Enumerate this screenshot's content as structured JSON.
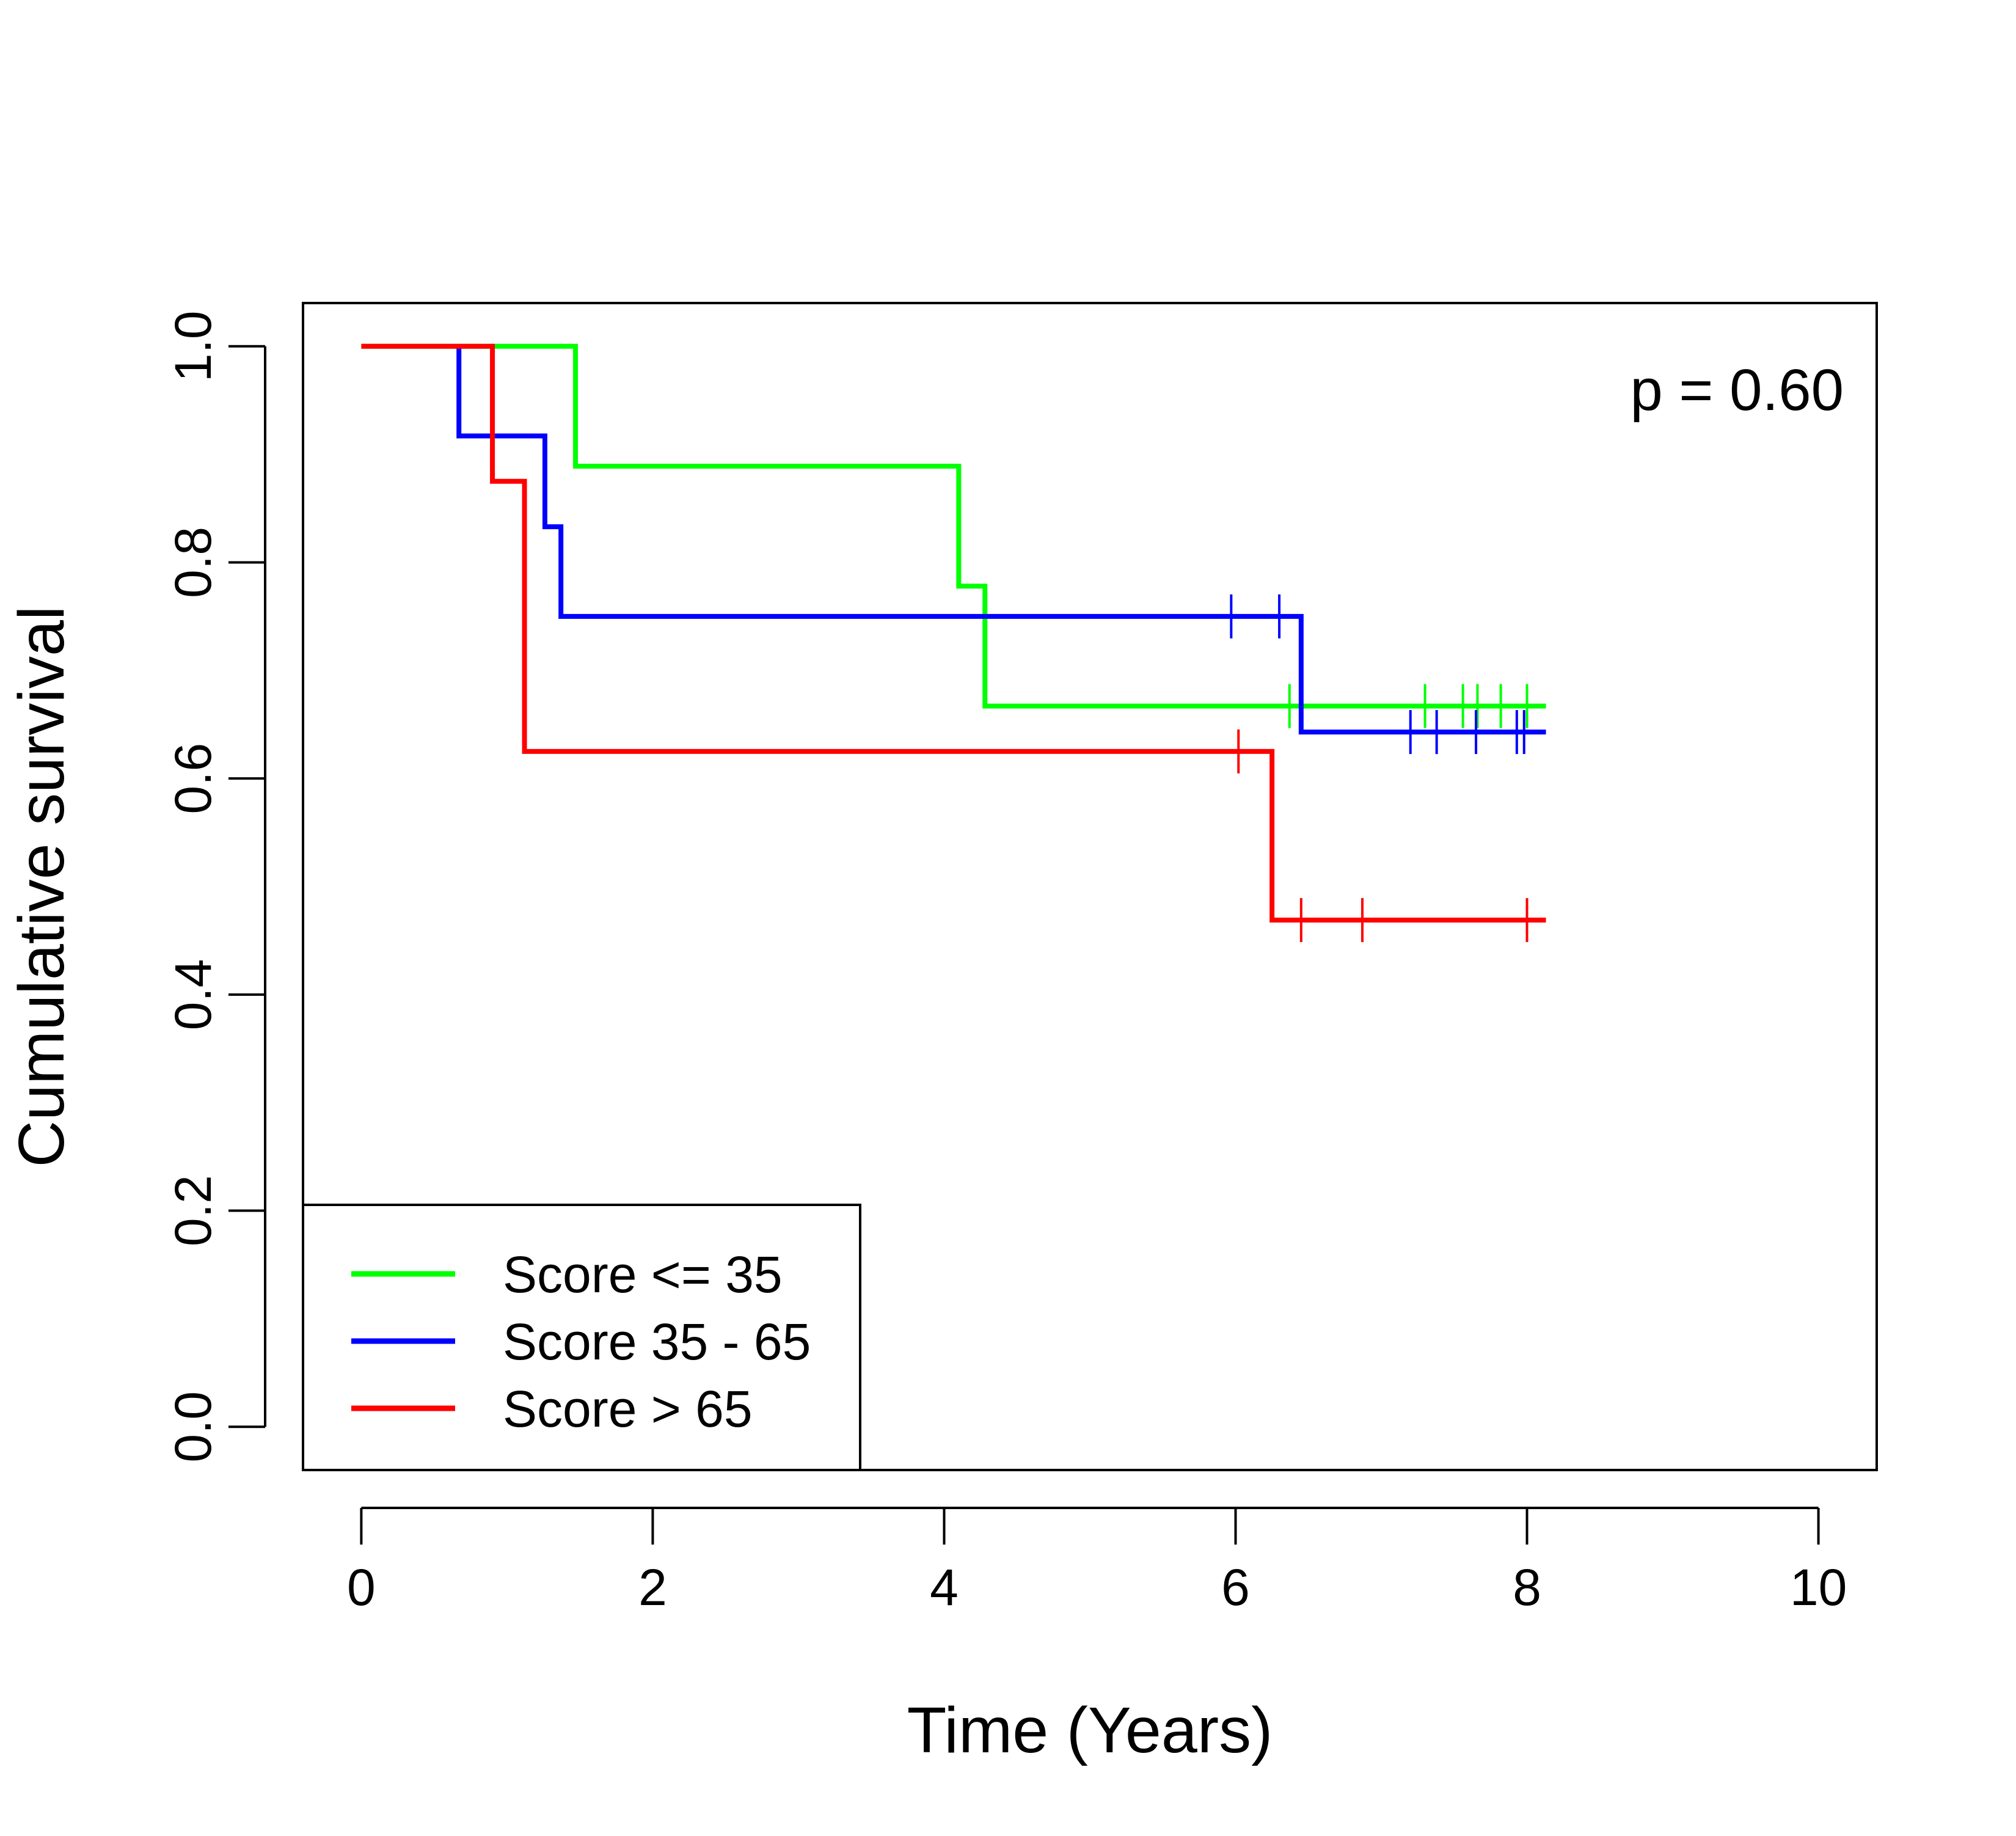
{
  "chart_data": {
    "type": "line",
    "subtype": "kaplan-meier step",
    "title": "",
    "xlabel": "Time (Years)",
    "ylabel": "Cumulative survival",
    "xlim": [
      -0.4,
      10.4
    ],
    "ylim": [
      -0.04,
      1.04
    ],
    "xticks": [
      0,
      2,
      4,
      6,
      8,
      10
    ],
    "xtick_labels": [
      "0",
      "2",
      "4",
      "6",
      "8",
      "10"
    ],
    "yticks": [
      0.0,
      0.2,
      0.4,
      0.6,
      0.8,
      1.0
    ],
    "ytick_labels": [
      "0.0",
      "0.2",
      "0.4",
      "0.6",
      "0.8",
      "1.0"
    ],
    "grid": false,
    "legend_position": "bottom-left",
    "annotation": "p = 0.60",
    "series": [
      {
        "name": "Score <= 35",
        "color": "#00ff00",
        "steps": [
          [
            0,
            1.0
          ],
          [
            1.47,
            0.889
          ],
          [
            4.1,
            0.778
          ],
          [
            4.28,
            0.667
          ]
        ],
        "end_x": 8.13,
        "censor_times": [
          6.37,
          7.3,
          7.56,
          7.66,
          7.82,
          8.0
        ]
      },
      {
        "name": "Score 35 - 65",
        "color": "#0000ff",
        "steps": [
          [
            0.67,
            1.0
          ],
          [
            0.67,
            0.917
          ],
          [
            1.26,
            0.833
          ],
          [
            1.37,
            0.75
          ],
          [
            6.45,
            0.643
          ]
        ],
        "end_x": 8.13,
        "censor_times": [
          5.97,
          6.3,
          7.2,
          7.38,
          7.65,
          7.93,
          7.98
        ]
      },
      {
        "name": "Score > 65",
        "color": "#ff0000",
        "steps": [
          [
            0,
            1.0
          ],
          [
            0.9,
            0.875
          ],
          [
            1.12,
            0.625
          ],
          [
            6.25,
            0.469
          ]
        ],
        "end_x": 8.13,
        "censor_times": [
          6.02,
          6.45,
          6.87,
          8.0
        ]
      }
    ]
  }
}
